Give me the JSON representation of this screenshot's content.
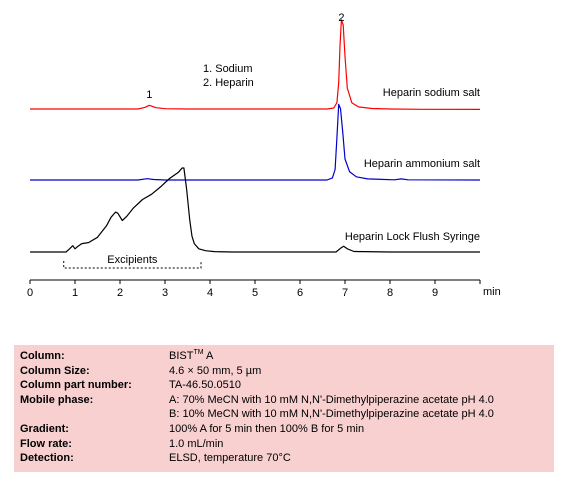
{
  "chart_data": {
    "type": "line",
    "xlabel": "min",
    "xlim": [
      0,
      10
    ],
    "x_ticks": [
      "0",
      "1",
      "2",
      "3",
      "4",
      "5",
      "6",
      "7",
      "8",
      "9"
    ],
    "legend": [
      "1.  Sodium",
      "2.  Heparin"
    ],
    "peak_labels": [
      {
        "label": "1",
        "x": 2.65
      },
      {
        "label": "2",
        "x": 6.92
      }
    ],
    "series": [
      {
        "name": "Heparin sodium salt",
        "color": "#ff0000",
        "x": [
          0,
          2.4,
          2.55,
          2.65,
          2.8,
          3.0,
          3.5,
          6.6,
          6.75,
          6.82,
          6.86,
          6.89,
          6.92,
          6.96,
          7.0,
          7.05,
          7.15,
          7.3,
          7.6,
          8.0,
          8.7,
          10
        ],
        "y": [
          0,
          0,
          0.015,
          0.035,
          0.012,
          0.003,
          0,
          0,
          0.01,
          0.06,
          0.25,
          0.6,
          0.85,
          0.8,
          0.5,
          0.2,
          0.06,
          0.02,
          0.005,
          0,
          -0.003,
          -0.004
        ]
      },
      {
        "name": "Heparin ammonium salt",
        "color": "#0000cc",
        "x": [
          0,
          2.4,
          2.6,
          2.75,
          3.0,
          6.6,
          6.72,
          6.78,
          6.82,
          6.86,
          6.9,
          6.95,
          7.0,
          7.1,
          7.25,
          7.5,
          8.1,
          8.25,
          8.4,
          10
        ],
        "y": [
          0,
          0,
          0.012,
          0.005,
          0,
          0,
          0.02,
          0.1,
          0.4,
          0.72,
          0.68,
          0.45,
          0.2,
          0.08,
          0.03,
          0.01,
          0.002,
          0.01,
          0.002,
          0
        ]
      },
      {
        "name": "Heparin Lock Flush Syringe",
        "color": "#000000",
        "x": [
          0,
          0.8,
          0.88,
          0.95,
          1.0,
          1.05,
          1.15,
          1.3,
          1.5,
          1.7,
          1.8,
          1.9,
          1.95,
          2.05,
          2.15,
          2.3,
          2.5,
          2.7,
          2.9,
          3.1,
          3.3,
          3.38,
          3.42,
          3.48,
          3.55,
          3.6,
          3.65,
          3.75,
          3.9,
          4.1,
          4.5,
          6.8,
          6.9,
          6.97,
          7.05,
          7.2,
          8,
          10
        ],
        "y": [
          0,
          0,
          0.03,
          0.06,
          0.03,
          0.05,
          0.08,
          0.09,
          0.14,
          0.25,
          0.33,
          0.38,
          0.37,
          0.3,
          0.34,
          0.42,
          0.5,
          0.55,
          0.62,
          0.7,
          0.76,
          0.8,
          0.8,
          0.6,
          0.3,
          0.15,
          0.08,
          0.03,
          0.012,
          0.004,
          0,
          0,
          0.035,
          0.055,
          0.03,
          0.005,
          0,
          0
        ]
      }
    ],
    "annotations": [
      {
        "text": "Excipients",
        "x_range": [
          0.75,
          3.8
        ]
      }
    ]
  },
  "info": {
    "column_label": "Column:",
    "column_value_main": "BIST",
    "column_value_sup": "TM",
    "column_value_suffix": " A",
    "column_size_label": "Column Size:",
    "column_size_value": "4.6 × 50 mm, 5 µm",
    "column_part_label": "Column part number:",
    "column_part_value": "TA-46.50.0510",
    "mobile_phase_label": "Mobile phase:",
    "mobile_phase_a": "A:  70% MeCN with 10 mM  N,N'-Dimethylpiperazine acetate pH 4.0",
    "mobile_phase_b": "B:  10% MeCN with 10 mM  N,N'-Dimethylpiperazine acetate pH 4.0",
    "gradient_label": "Gradient:",
    "gradient_value": "100% A for 5 min then 100% B for 5 min",
    "flow_rate_label": "Flow rate:",
    "flow_rate_value": "1.0 mL/min",
    "detection_label": "Detection:",
    "detection_value": "ELSD, temperature  70°C"
  }
}
